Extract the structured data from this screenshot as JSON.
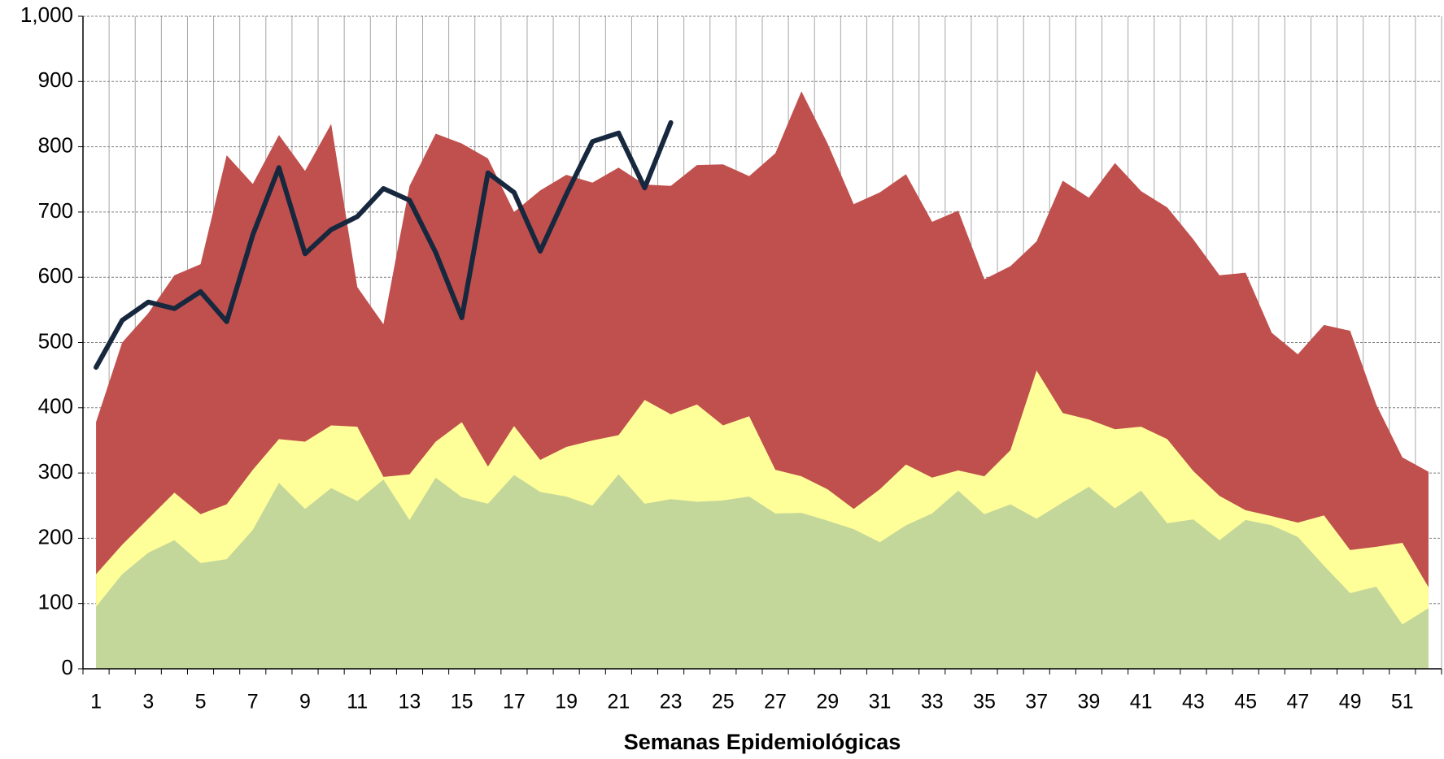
{
  "chart_data": {
    "type": "area",
    "x_label": "Semanas Epidemiológicas",
    "categories": [
      "1",
      null,
      "3",
      null,
      "5",
      null,
      "7",
      null,
      "9",
      null,
      "11",
      null,
      "13",
      null,
      "15",
      null,
      "17",
      null,
      "19",
      null,
      "21",
      null,
      "23",
      null,
      "25",
      null,
      "27",
      null,
      "29",
      null,
      "31",
      null,
      "33",
      null,
      "35",
      null,
      "37",
      null,
      "39",
      null,
      "41",
      null,
      "43",
      null,
      "45",
      null,
      "47",
      null,
      "49",
      null,
      "51",
      null
    ],
    "series": [
      {
        "color": "#c0504d",
        "values": [
          378,
          500,
          545,
          603,
          620,
          787,
          743,
          818,
          763,
          835,
          585,
          528,
          740,
          820,
          805,
          782,
          700,
          733,
          757,
          745,
          768,
          742,
          740,
          772,
          773,
          755,
          790,
          885,
          805,
          712,
          730,
          758,
          685,
          702,
          597,
          617,
          655,
          748,
          722,
          775,
          732,
          707,
          658,
          603,
          607,
          515,
          482,
          527,
          518,
          405,
          324,
          302
        ]
      },
      {
        "color": "#ffff99",
        "values": [
          145,
          190,
          230,
          270,
          237,
          252,
          305,
          352,
          348,
          373,
          371,
          294,
          298,
          348,
          378,
          310,
          372,
          320,
          340,
          350,
          358,
          412,
          390,
          405,
          373,
          387,
          305,
          295,
          275,
          245,
          275,
          313,
          293,
          304,
          295,
          335,
          457,
          392,
          382,
          367,
          371,
          352,
          303,
          265,
          243,
          234,
          224,
          235,
          182,
          187,
          193,
          125
        ]
      },
      {
        "color": "#c4d79b",
        "values": [
          95,
          145,
          178,
          197,
          162,
          168,
          213,
          285,
          245,
          277,
          257,
          290,
          228,
          293,
          263,
          253,
          297,
          271,
          264,
          250,
          298,
          253,
          260,
          256,
          258,
          264,
          238,
          239,
          227,
          214,
          194,
          220,
          238,
          273,
          237,
          252,
          230,
          255,
          279,
          246,
          273,
          223,
          229,
          197,
          228,
          220,
          202,
          158,
          116,
          126,
          68,
          93
        ]
      },
      {
        "type": "line",
        "color": "#17283e",
        "values": [
          462,
          534,
          562,
          552,
          578,
          532,
          665,
          768,
          636,
          673,
          693,
          736,
          718,
          638,
          538,
          760,
          730,
          640,
          727,
          808,
          821,
          737,
          837,
          null,
          null,
          null,
          null,
          null,
          null,
          null,
          null,
          null,
          null,
          null,
          null,
          null,
          null,
          null,
          null,
          null,
          null,
          null,
          null,
          null,
          null,
          null,
          null,
          null,
          null,
          null,
          null,
          null
        ]
      }
    ],
    "ylim": [
      0,
      1000
    ],
    "yticks": [
      0,
      100,
      200,
      300,
      400,
      500,
      600,
      700,
      800,
      900,
      {
        "value": 1000,
        "label": "1,000"
      }
    ],
    "grid": true
  }
}
